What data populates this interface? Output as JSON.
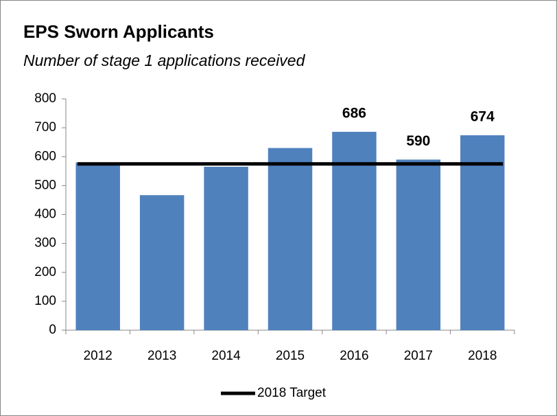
{
  "chart_data": {
    "type": "bar",
    "title": "EPS Sworn Applicants",
    "subtitle": "Number of stage 1 applications received",
    "categories": [
      "2012",
      "2013",
      "2014",
      "2015",
      "2016",
      "2017",
      "2018"
    ],
    "values": [
      580,
      467,
      565,
      630,
      686,
      590,
      674
    ],
    "value_labels": [
      null,
      null,
      null,
      null,
      "686",
      "590",
      "674"
    ],
    "color": "#4f81bd",
    "target": {
      "name": "2018 Target",
      "value": 575,
      "color": "#000000"
    },
    "ylim": [
      0,
      800
    ],
    "yticks": [
      0,
      100,
      200,
      300,
      400,
      500,
      600,
      700,
      800
    ],
    "grid": false,
    "legend": "bottom"
  }
}
